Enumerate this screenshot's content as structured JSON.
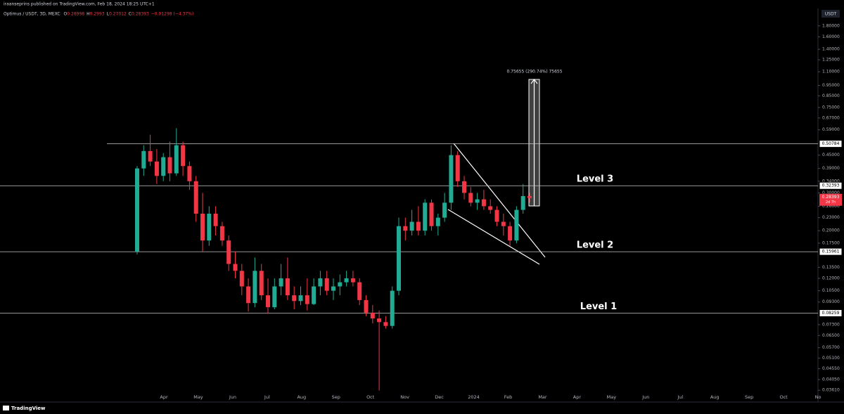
{
  "header": {
    "publisher": "iraanseprins published on TradingView.com, Feb 18, 2024 18:25 UTC+1"
  },
  "chart_data": {
    "type": "candlestick",
    "symbol": "Optimus / USDT, 3D, MEXC",
    "ohlc_legend": [
      {
        "key": "O",
        "value": 0.28998
      },
      {
        "key": "H",
        "value": 0.2993
      },
      {
        "key": "L",
        "value": 0.27012
      },
      {
        "key": "C",
        "value": 0.28393
      }
    ],
    "change": "−0.01298 (−4.37%)",
    "currency": "USDT",
    "up_color": "#22ab94",
    "down_color": "#f23645",
    "log_scale": true,
    "candles": {
      "open": [
        0.16,
        0.39,
        0.47,
        0.42,
        0.36,
        0.44,
        0.37,
        0.5,
        0.4,
        0.34,
        0.24,
        0.18,
        0.24,
        0.21,
        0.18,
        0.14,
        0.13,
        0.11,
        0.092,
        0.13,
        0.1,
        0.088,
        0.11,
        0.12,
        0.1,
        0.094,
        0.1,
        0.091,
        0.11,
        0.12,
        0.105,
        0.11,
        0.115,
        0.12,
        0.115,
        0.095,
        0.083,
        0.078,
        0.075,
        0.072,
        0.105,
        0.21,
        0.2,
        0.22,
        0.2,
        0.27,
        0.21,
        0.23,
        0.27,
        0.45,
        0.34,
        0.3,
        0.27,
        0.28,
        0.26,
        0.25,
        0.22,
        0.21,
        0.18,
        0.25,
        0.29
      ],
      "high": [
        0.4,
        0.5,
        0.56,
        0.48,
        0.46,
        0.52,
        0.6,
        0.52,
        0.42,
        0.36,
        0.3,
        0.26,
        0.26,
        0.22,
        0.19,
        0.16,
        0.14,
        0.12,
        0.15,
        0.14,
        0.12,
        0.12,
        0.14,
        0.15,
        0.11,
        0.11,
        0.12,
        0.12,
        0.13,
        0.13,
        0.12,
        0.125,
        0.13,
        0.13,
        0.12,
        0.1,
        0.09,
        0.085,
        0.08,
        0.11,
        0.23,
        0.23,
        0.25,
        0.26,
        0.28,
        0.28,
        0.24,
        0.3,
        0.5,
        0.47,
        0.36,
        0.32,
        0.3,
        0.31,
        0.28,
        0.26,
        0.24,
        0.22,
        0.26,
        0.33,
        0.3
      ],
      "low": [
        0.155,
        0.36,
        0.4,
        0.33,
        0.34,
        0.34,
        0.36,
        0.36,
        0.31,
        0.22,
        0.16,
        0.17,
        0.19,
        0.17,
        0.13,
        0.12,
        0.1,
        0.084,
        0.088,
        0.095,
        0.082,
        0.086,
        0.1,
        0.095,
        0.086,
        0.09,
        0.085,
        0.09,
        0.1,
        0.1,
        0.095,
        0.1,
        0.11,
        0.11,
        0.09,
        0.08,
        0.074,
        0.036,
        0.07,
        0.07,
        0.1,
        0.18,
        0.19,
        0.19,
        0.19,
        0.2,
        0.19,
        0.22,
        0.25,
        0.32,
        0.28,
        0.26,
        0.25,
        0.25,
        0.24,
        0.21,
        0.19,
        0.17,
        0.175,
        0.24,
        0.27
      ],
      "close": [
        0.39,
        0.47,
        0.42,
        0.36,
        0.44,
        0.37,
        0.5,
        0.4,
        0.34,
        0.24,
        0.18,
        0.24,
        0.21,
        0.18,
        0.14,
        0.13,
        0.11,
        0.092,
        0.13,
        0.1,
        0.088,
        0.11,
        0.12,
        0.1,
        0.094,
        0.1,
        0.091,
        0.11,
        0.12,
        0.105,
        0.11,
        0.115,
        0.12,
        0.115,
        0.095,
        0.083,
        0.078,
        0.075,
        0.072,
        0.105,
        0.21,
        0.2,
        0.22,
        0.2,
        0.27,
        0.21,
        0.23,
        0.27,
        0.45,
        0.34,
        0.3,
        0.27,
        0.28,
        0.26,
        0.25,
        0.22,
        0.21,
        0.18,
        0.25,
        0.29,
        0.28393
      ]
    },
    "ylim": [
      0.0323,
      2.17
    ],
    "yticks": [
      {
        "value": 1.8,
        "label": "1.80000"
      },
      {
        "value": 1.6,
        "label": "1.60000"
      },
      {
        "value": 1.4,
        "label": "1.40000"
      },
      {
        "value": 1.25,
        "label": "1.25000"
      },
      {
        "value": 1.1,
        "label": "1.10000"
      },
      {
        "value": 0.95,
        "label": "0.95000"
      },
      {
        "value": 0.85,
        "label": "0.85000"
      },
      {
        "value": 0.75,
        "label": "0.75000"
      },
      {
        "value": 0.67,
        "label": "0.67000"
      },
      {
        "value": 0.59,
        "label": "0.59000"
      },
      {
        "value": 0.45,
        "label": "0.45000"
      },
      {
        "value": 0.39,
        "label": "0.39000"
      },
      {
        "value": 0.34,
        "label": "0.34000"
      },
      {
        "value": 0.3,
        "label": "0.30000"
      },
      {
        "value": 0.26,
        "label": "0.26000"
      },
      {
        "value": 0.23,
        "label": "0.23000"
      },
      {
        "value": 0.2,
        "label": "0.20000"
      },
      {
        "value": 0.175,
        "label": "0.17500"
      },
      {
        "value": 0.135,
        "label": "0.13500"
      },
      {
        "value": 0.12,
        "label": "0.12000"
      },
      {
        "value": 0.105,
        "label": "0.10500"
      },
      {
        "value": 0.093,
        "label": "0.09300"
      },
      {
        "value": 0.073,
        "label": "0.07300"
      },
      {
        "value": 0.065,
        "label": "0.06500"
      },
      {
        "value": 0.057,
        "label": "0.05700"
      },
      {
        "value": 0.051,
        "label": "0.05100"
      },
      {
        "value": 0.0455,
        "label": "0.04550"
      },
      {
        "value": 0.0405,
        "label": "0.04050"
      },
      {
        "value": 0.0361,
        "label": "0.03610"
      }
    ],
    "x_labels": [
      "Apr",
      "May",
      "Jun",
      "Jul",
      "Aug",
      "Sep",
      "Oct",
      "Nov",
      "Dec",
      "2024",
      "Feb",
      "Mar",
      "Apr",
      "May",
      "Jun",
      "Jul",
      "Aug",
      "Sep",
      "Oct",
      "No"
    ],
    "levels": [
      {
        "value": 0.50784
      },
      {
        "value": 0.32393,
        "name": "Level 3"
      },
      {
        "value": 0.15961,
        "name": "Level 2"
      },
      {
        "value": 0.08259,
        "name": "Level 1"
      }
    ],
    "last_price": {
      "value": 0.28393,
      "countdown": "2d 7h"
    },
    "measure_label": "0.75655 (290.74%) 75655"
  },
  "footer": {
    "brand": "TradingView"
  }
}
